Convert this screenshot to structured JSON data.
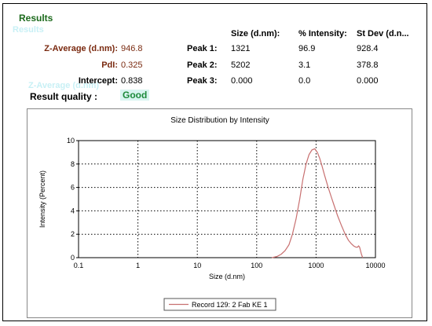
{
  "header": {
    "title": "Results",
    "ghost_title": "Results"
  },
  "summary": {
    "z_average": {
      "label": "Z-Average (d.nm):",
      "value": "946.8"
    },
    "pdi": {
      "label": "PdI:",
      "value": "0.325"
    },
    "intercept": {
      "label": "Intercept:",
      "value": "0.838"
    },
    "quality": {
      "label": "Result quality :",
      "value": "Good"
    },
    "ghost_z_average": "Z-Average (d.nm)"
  },
  "peaks_table": {
    "columns": [
      "Size (d.nm):",
      "% Intensity:",
      "St Dev (d.n..."
    ],
    "rows": [
      {
        "label": "Peak 1:",
        "size": "1321",
        "intensity": "96.9",
        "stdev": "928.4"
      },
      {
        "label": "Peak 2:",
        "size": "5202",
        "intensity": "3.1",
        "stdev": "378.8"
      },
      {
        "label": "Peak 3:",
        "size": "0.000",
        "intensity": "0.0",
        "stdev": "0.000"
      }
    ]
  },
  "chart_data": {
    "type": "line",
    "title": "Size Distribution by Intensity",
    "xlabel": "Size (d.nm)",
    "ylabel": "Intensity (Percent)",
    "xscale": "log",
    "xlim": [
      0.1,
      10000
    ],
    "ylim": [
      0,
      10
    ],
    "x_ticks": [
      "0.1",
      "1",
      "10",
      "100",
      "1000",
      "10000"
    ],
    "y_ticks": [
      "0",
      "2",
      "4",
      "6",
      "8",
      "10"
    ],
    "grid": true,
    "legend_position": "bottom-center",
    "series": [
      {
        "name": "Record 129: 2 Fab KE 1",
        "color": "#c87070",
        "x": [
          180,
          220,
          260,
          300,
          350,
          400,
          460,
          530,
          600,
          680,
          760,
          850,
          950,
          1050,
          1150,
          1250,
          1400,
          1600,
          1800,
          2000,
          2300,
          2700,
          3100,
          3500,
          3900,
          4300,
          4700,
          5000,
          5200,
          5400,
          5600,
          5800,
          6000,
          6100
        ],
        "y": [
          0,
          0.1,
          0.3,
          0.6,
          1.1,
          2.0,
          3.3,
          5.0,
          6.7,
          8.0,
          8.8,
          9.2,
          9.3,
          9.0,
          8.5,
          7.9,
          7.0,
          6.0,
          5.2,
          4.5,
          3.6,
          2.7,
          2.0,
          1.5,
          1.2,
          1.0,
          0.9,
          0.9,
          1.0,
          0.9,
          0.6,
          0.3,
          0.1,
          0
        ]
      }
    ]
  }
}
